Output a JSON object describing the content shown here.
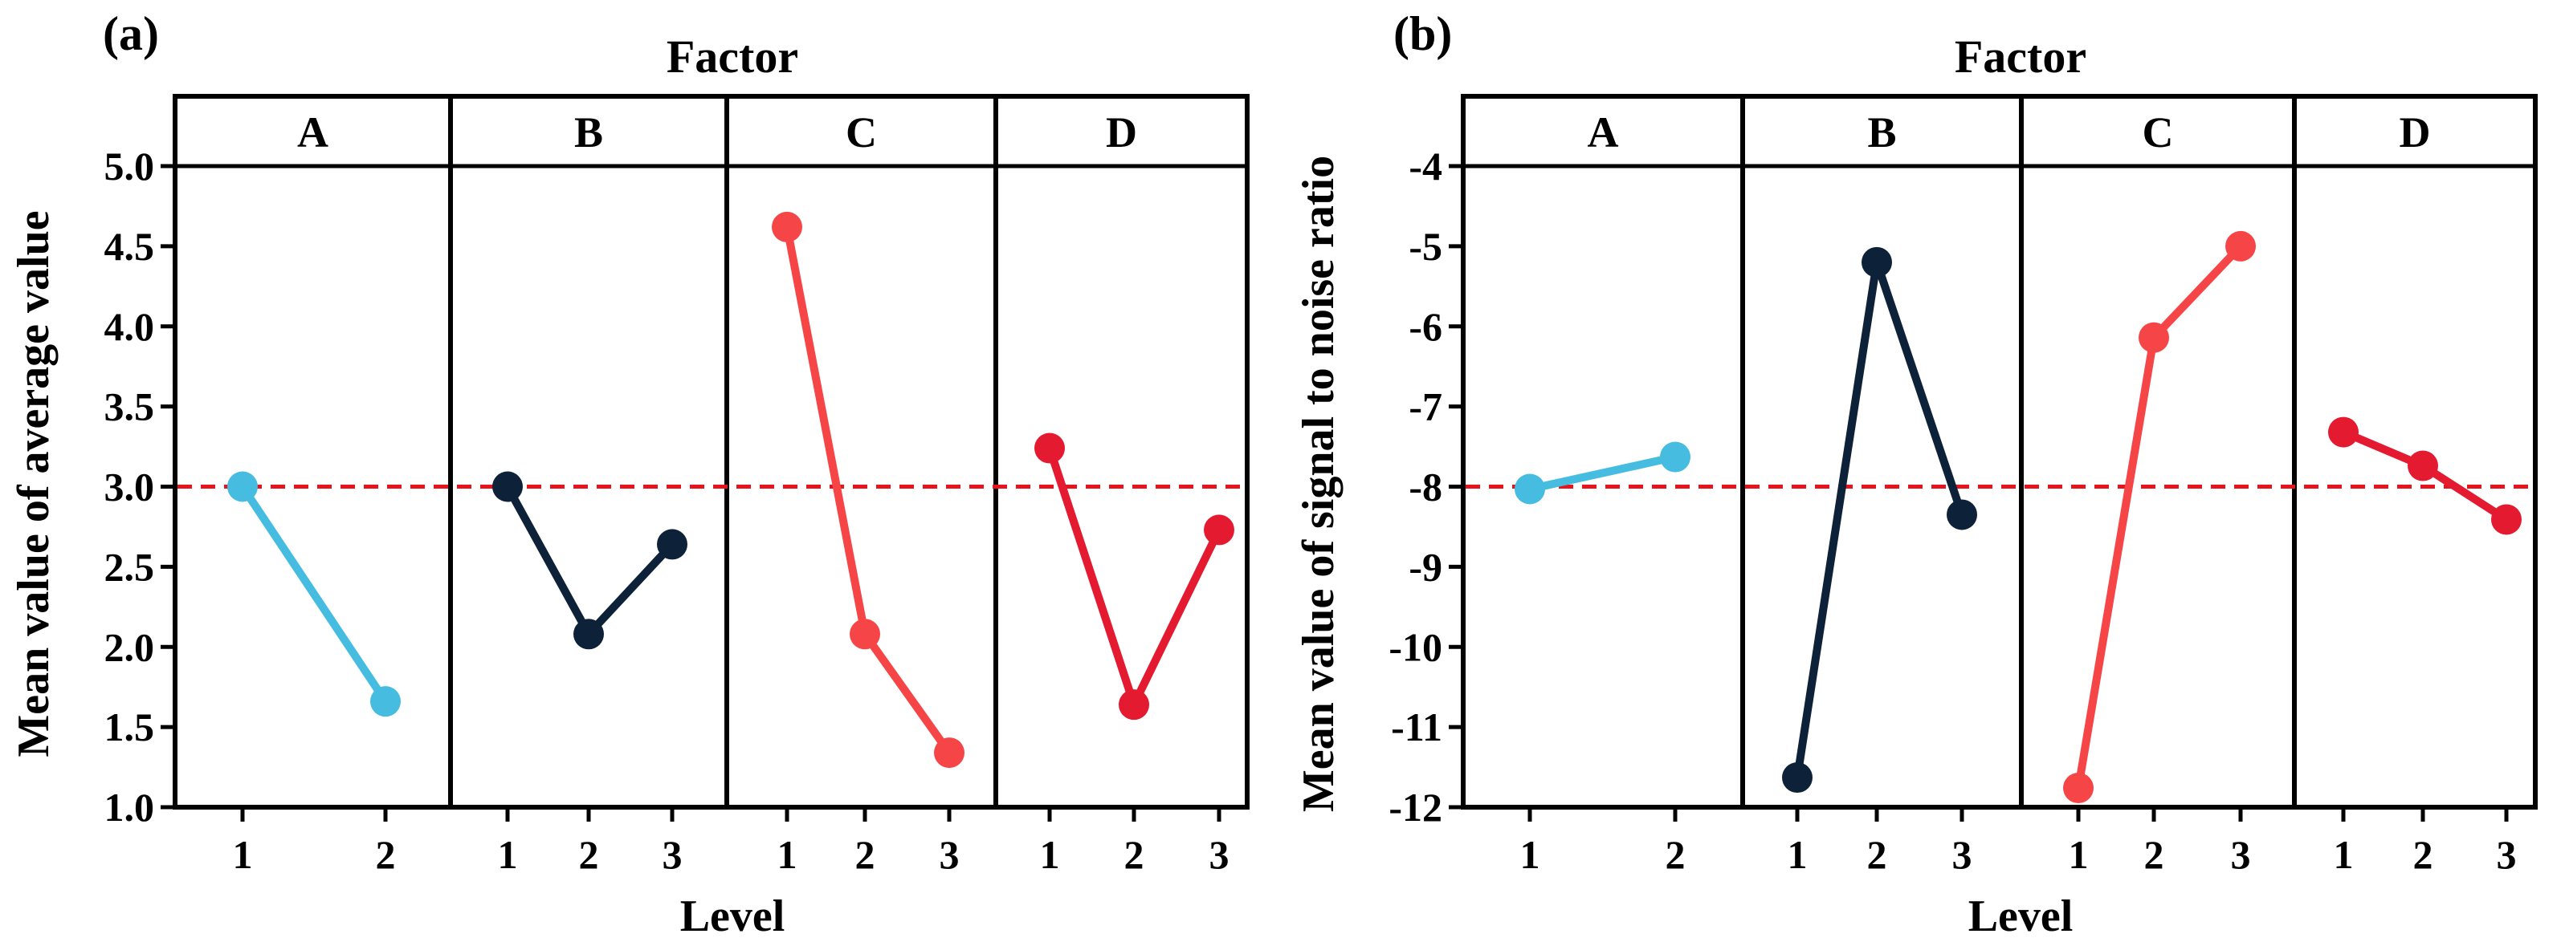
{
  "chart_data": [
    {
      "type": "line",
      "panel_label": "(a)",
      "title": "Factor",
      "xlabel": "Level",
      "ylabel": "Mean value of average value",
      "ylim": [
        1.0,
        5.0
      ],
      "yticks": [
        "1.0",
        "1.5",
        "2.0",
        "2.5",
        "3.0",
        "3.5",
        "4.0",
        "4.5",
        "5.0"
      ],
      "reference_line": {
        "value": 3.0,
        "color": "#e8141b",
        "style": "dashed"
      },
      "factors": [
        {
          "name": "A",
          "levels": [
            "1",
            "2"
          ],
          "values": [
            3.0,
            1.66
          ],
          "color": "#45bce0"
        },
        {
          "name": "B",
          "levels": [
            "1",
            "2",
            "3"
          ],
          "values": [
            3.0,
            2.08,
            2.64
          ],
          "color": "#0d2238"
        },
        {
          "name": "C",
          "levels": [
            "1",
            "2",
            "3"
          ],
          "values": [
            4.62,
            2.08,
            1.34
          ],
          "color": "#f64546"
        },
        {
          "name": "D",
          "levels": [
            "1",
            "2",
            "3"
          ],
          "values": [
            3.24,
            1.64,
            2.73
          ],
          "color": "#e31a30"
        }
      ]
    },
    {
      "type": "line",
      "panel_label": "(b)",
      "title": "Factor",
      "xlabel": "Level",
      "ylabel": "Mean value of signal to noise ratio",
      "ylim": [
        -12,
        -4
      ],
      "yticks": [
        "-12",
        "-11",
        "-10",
        "-9",
        "-8",
        "-7",
        "-6",
        "-5",
        "-4"
      ],
      "reference_line": {
        "value": -8.0,
        "color": "#e8141b",
        "style": "dashed"
      },
      "factors": [
        {
          "name": "A",
          "levels": [
            "1",
            "2"
          ],
          "values": [
            -8.03,
            -7.63
          ],
          "color": "#45bce0"
        },
        {
          "name": "B",
          "levels": [
            "1",
            "2",
            "3"
          ],
          "values": [
            -11.63,
            -5.2,
            -8.35
          ],
          "color": "#0d2238"
        },
        {
          "name": "C",
          "levels": [
            "1",
            "2",
            "3"
          ],
          "values": [
            -11.76,
            -6.14,
            -5.0
          ],
          "color": "#f64546"
        },
        {
          "name": "D",
          "levels": [
            "1",
            "2",
            "3"
          ],
          "values": [
            -7.32,
            -7.74,
            -8.41
          ],
          "color": "#e31a30"
        }
      ]
    }
  ]
}
